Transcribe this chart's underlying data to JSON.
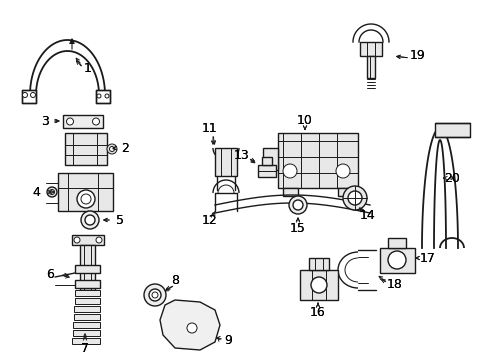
{
  "background_color": "#ffffff",
  "line_color": "#1a1a1a",
  "label_color": "#000000",
  "label_fontsize": 9,
  "figsize": [
    4.9,
    3.6
  ],
  "dpi": 100
}
